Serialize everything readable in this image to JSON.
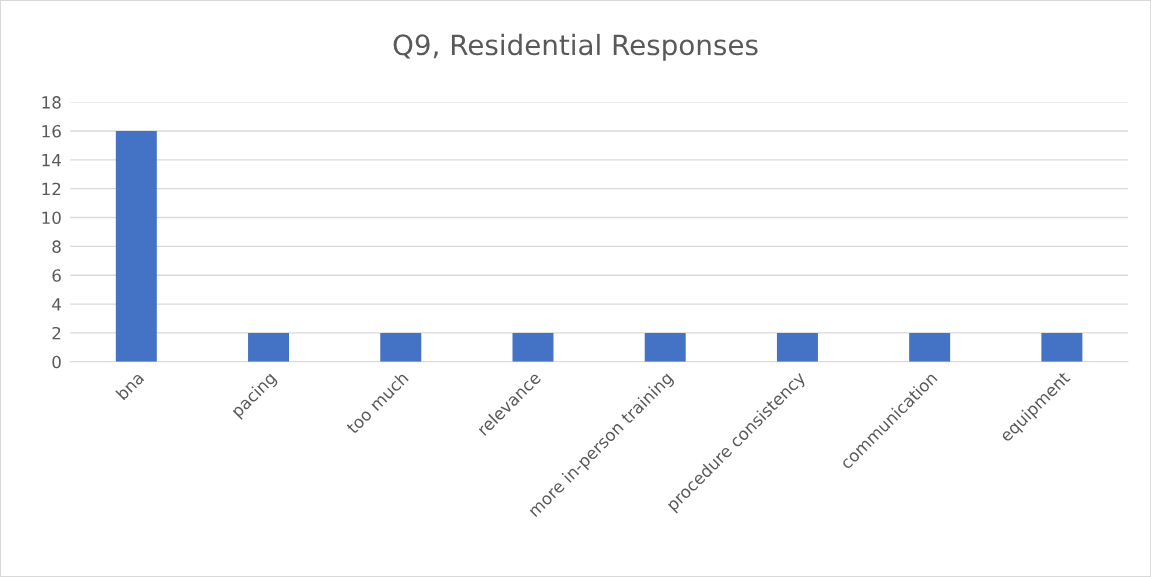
{
  "chart_data": {
    "type": "bar",
    "title": "Q9, Residential Responses",
    "categories": [
      "bna",
      "pacing",
      "too much",
      "relevance",
      "more in-person training",
      "procedure consistency",
      "communication",
      "equipment"
    ],
    "values": [
      16,
      2,
      2,
      2,
      2,
      2,
      2,
      2
    ],
    "color": "#4472c4",
    "ylim": [
      0,
      18
    ],
    "yticks": [
      0,
      2,
      4,
      6,
      8,
      10,
      12,
      14,
      16,
      18
    ],
    "grid": "y",
    "legend": false
  }
}
